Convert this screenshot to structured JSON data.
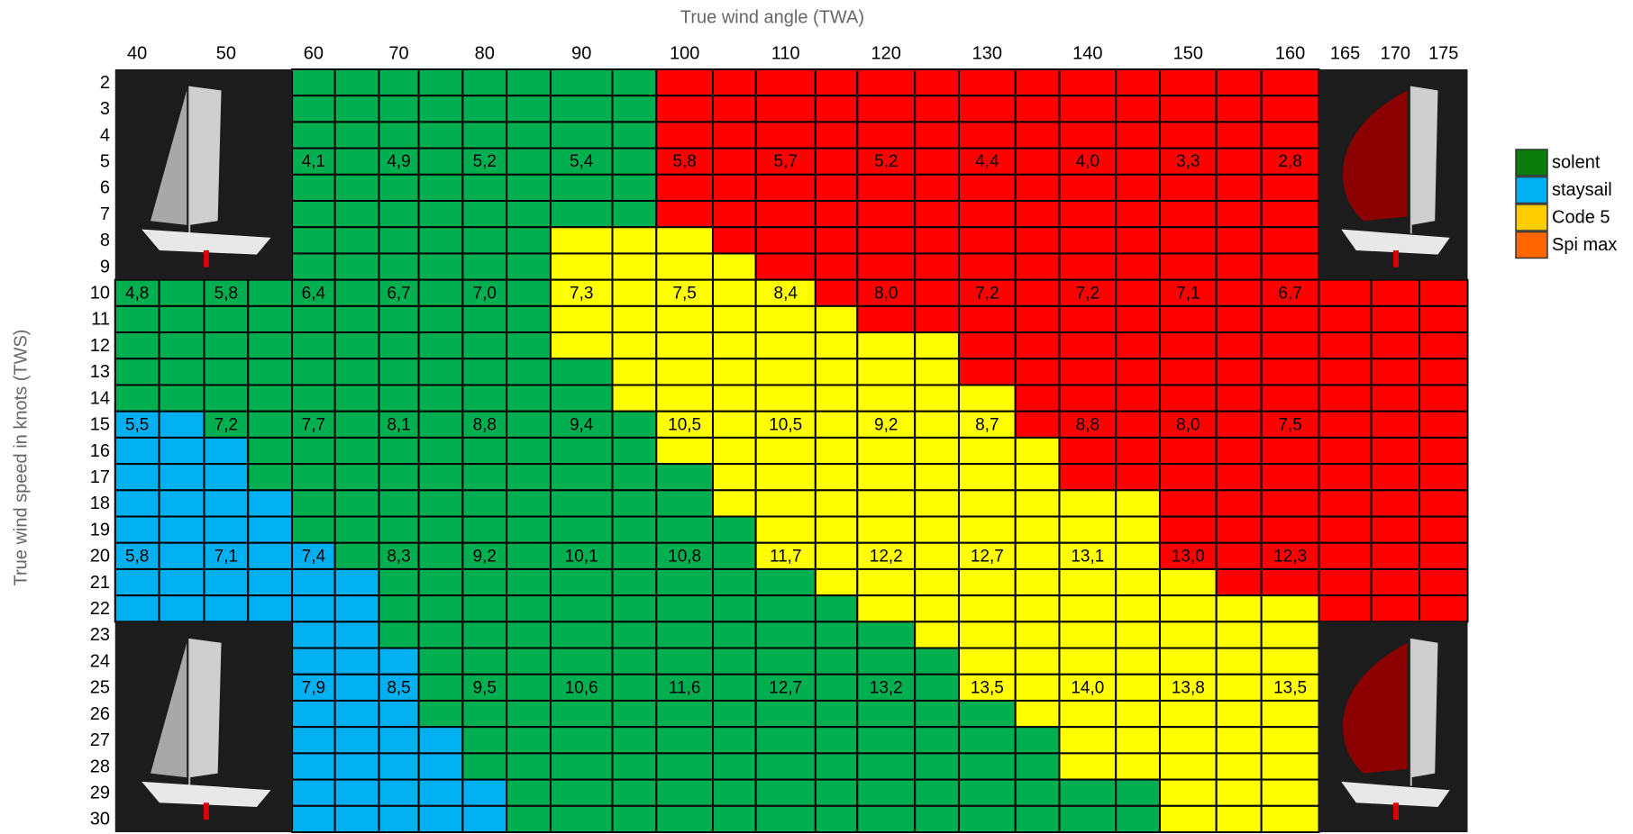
{
  "chart_data": {
    "type": "crossover",
    "x_label": "True wind angle (TWA)",
    "y_label": "True wind speed in knots (TWS)",
    "twa": [
      40,
      45,
      50,
      55,
      60,
      65,
      70,
      75,
      80,
      85,
      90,
      95,
      100,
      105,
      110,
      115,
      120,
      125,
      130,
      135,
      140,
      145,
      150,
      155,
      160,
      165,
      170,
      175
    ],
    "xticks": [
      40,
      50,
      60,
      70,
      80,
      90,
      100,
      110,
      120,
      130,
      140,
      150,
      160,
      165,
      170,
      175
    ],
    "tws": [
      2,
      3,
      4,
      5,
      6,
      7,
      8,
      9,
      10,
      11,
      12,
      13,
      14,
      15,
      16,
      17,
      18,
      19,
      20,
      21,
      22,
      23,
      24,
      25,
      26,
      27,
      28,
      29,
      30
    ],
    "series": [
      {
        "name": "solent",
        "color": "#0a7d0a",
        "fill": "#00b050"
      },
      {
        "name": "staysail",
        "color": "#00b0f0",
        "fill": "#00b0f0"
      },
      {
        "name": "Code 5",
        "color": "#ffcc00",
        "fill": "#ffff00"
      },
      {
        "name": "Spi max",
        "color": "#ff6600",
        "fill": "#ff0000"
      }
    ],
    "grid": [
      [
        null,
        null,
        null,
        null,
        0,
        0,
        0,
        0,
        0,
        0,
        0,
        0,
        3,
        3,
        3,
        3,
        3,
        3,
        3,
        3,
        3,
        3,
        3,
        3,
        3,
        null,
        null,
        null
      ],
      [
        null,
        null,
        null,
        null,
        0,
        0,
        0,
        0,
        0,
        0,
        0,
        0,
        3,
        3,
        3,
        3,
        3,
        3,
        3,
        3,
        3,
        3,
        3,
        3,
        3,
        null,
        null,
        null
      ],
      [
        null,
        null,
        null,
        null,
        0,
        0,
        0,
        0,
        0,
        0,
        0,
        0,
        3,
        3,
        3,
        3,
        3,
        3,
        3,
        3,
        3,
        3,
        3,
        3,
        3,
        null,
        null,
        null
      ],
      [
        null,
        null,
        null,
        null,
        0,
        0,
        0,
        0,
        0,
        0,
        0,
        0,
        3,
        3,
        3,
        3,
        3,
        3,
        3,
        3,
        3,
        3,
        3,
        3,
        3,
        null,
        null,
        null
      ],
      [
        null,
        null,
        null,
        null,
        0,
        0,
        0,
        0,
        0,
        0,
        0,
        0,
        3,
        3,
        3,
        3,
        3,
        3,
        3,
        3,
        3,
        3,
        3,
        3,
        3,
        null,
        null,
        null
      ],
      [
        null,
        null,
        null,
        null,
        0,
        0,
        0,
        0,
        0,
        0,
        0,
        0,
        3,
        3,
        3,
        3,
        3,
        3,
        3,
        3,
        3,
        3,
        3,
        3,
        3,
        null,
        null,
        null
      ],
      [
        null,
        null,
        null,
        null,
        0,
        0,
        0,
        0,
        0,
        0,
        2,
        2,
        2,
        3,
        3,
        3,
        3,
        3,
        3,
        3,
        3,
        3,
        3,
        3,
        3,
        null,
        null,
        null
      ],
      [
        null,
        null,
        null,
        null,
        0,
        0,
        0,
        0,
        0,
        0,
        2,
        2,
        2,
        2,
        3,
        3,
        3,
        3,
        3,
        3,
        3,
        3,
        3,
        3,
        3,
        null,
        null,
        null
      ],
      [
        0,
        0,
        0,
        0,
        0,
        0,
        0,
        0,
        0,
        0,
        2,
        2,
        2,
        2,
        2,
        3,
        3,
        3,
        3,
        3,
        3,
        3,
        3,
        3,
        3,
        3,
        3,
        3
      ],
      [
        0,
        0,
        0,
        0,
        0,
        0,
        0,
        0,
        0,
        0,
        2,
        2,
        2,
        2,
        2,
        2,
        3,
        3,
        3,
        3,
        3,
        3,
        3,
        3,
        3,
        3,
        3,
        3
      ],
      [
        0,
        0,
        0,
        0,
        0,
        0,
        0,
        0,
        0,
        0,
        2,
        2,
        2,
        2,
        2,
        2,
        2,
        2,
        3,
        3,
        3,
        3,
        3,
        3,
        3,
        3,
        3,
        3
      ],
      [
        0,
        0,
        0,
        0,
        0,
        0,
        0,
        0,
        0,
        0,
        0,
        2,
        2,
        2,
        2,
        2,
        2,
        2,
        3,
        3,
        3,
        3,
        3,
        3,
        3,
        3,
        3,
        3
      ],
      [
        0,
        0,
        0,
        0,
        0,
        0,
        0,
        0,
        0,
        0,
        0,
        2,
        2,
        2,
        2,
        2,
        2,
        2,
        2,
        3,
        3,
        3,
        3,
        3,
        3,
        3,
        3,
        3
      ],
      [
        1,
        1,
        0,
        0,
        0,
        0,
        0,
        0,
        0,
        0,
        0,
        0,
        2,
        2,
        2,
        2,
        2,
        2,
        2,
        3,
        3,
        3,
        3,
        3,
        3,
        3,
        3,
        3
      ],
      [
        1,
        1,
        1,
        0,
        0,
        0,
        0,
        0,
        0,
        0,
        0,
        0,
        2,
        2,
        2,
        2,
        2,
        2,
        2,
        2,
        3,
        3,
        3,
        3,
        3,
        3,
        3,
        3
      ],
      [
        1,
        1,
        1,
        0,
        0,
        0,
        0,
        0,
        0,
        0,
        0,
        0,
        0,
        2,
        2,
        2,
        2,
        2,
        2,
        2,
        3,
        3,
        3,
        3,
        3,
        3,
        3,
        3
      ],
      [
        1,
        1,
        1,
        1,
        0,
        0,
        0,
        0,
        0,
        0,
        0,
        0,
        0,
        2,
        2,
        2,
        2,
        2,
        2,
        2,
        2,
        2,
        3,
        3,
        3,
        3,
        3,
        3
      ],
      [
        1,
        1,
        1,
        1,
        0,
        0,
        0,
        0,
        0,
        0,
        0,
        0,
        0,
        0,
        2,
        2,
        2,
        2,
        2,
        2,
        2,
        2,
        3,
        3,
        3,
        3,
        3,
        3
      ],
      [
        1,
        1,
        1,
        1,
        1,
        0,
        0,
        0,
        0,
        0,
        0,
        0,
        0,
        0,
        2,
        2,
        2,
        2,
        2,
        2,
        2,
        2,
        3,
        3,
        3,
        3,
        3,
        3
      ],
      [
        1,
        1,
        1,
        1,
        1,
        1,
        0,
        0,
        0,
        0,
        0,
        0,
        0,
        0,
        0,
        2,
        2,
        2,
        2,
        2,
        2,
        2,
        2,
        3,
        3,
        3,
        3,
        3
      ],
      [
        1,
        1,
        1,
        1,
        1,
        1,
        0,
        0,
        0,
        0,
        0,
        0,
        0,
        0,
        0,
        0,
        2,
        2,
        2,
        2,
        2,
        2,
        2,
        2,
        2,
        3,
        3,
        3
      ],
      [
        null,
        null,
        null,
        null,
        1,
        1,
        0,
        0,
        0,
        0,
        0,
        0,
        0,
        0,
        0,
        0,
        0,
        2,
        2,
        2,
        2,
        2,
        2,
        2,
        2,
        null,
        null,
        null
      ],
      [
        null,
        null,
        null,
        null,
        1,
        1,
        1,
        0,
        0,
        0,
        0,
        0,
        0,
        0,
        0,
        0,
        0,
        0,
        2,
        2,
        2,
        2,
        2,
        2,
        2,
        null,
        null,
        null
      ],
      [
        null,
        null,
        null,
        null,
        1,
        1,
        1,
        0,
        0,
        0,
        0,
        0,
        0,
        0,
        0,
        0,
        0,
        0,
        2,
        2,
        2,
        2,
        2,
        2,
        2,
        null,
        null,
        null
      ],
      [
        null,
        null,
        null,
        null,
        1,
        1,
        1,
        0,
        0,
        0,
        0,
        0,
        0,
        0,
        0,
        0,
        0,
        0,
        0,
        2,
        2,
        2,
        2,
        2,
        2,
        null,
        null,
        null
      ],
      [
        null,
        null,
        null,
        null,
        1,
        1,
        1,
        1,
        0,
        0,
        0,
        0,
        0,
        0,
        0,
        0,
        0,
        0,
        0,
        0,
        2,
        2,
        2,
        2,
        2,
        null,
        null,
        null
      ],
      [
        null,
        null,
        null,
        null,
        1,
        1,
        1,
        1,
        0,
        0,
        0,
        0,
        0,
        0,
        0,
        0,
        0,
        0,
        0,
        0,
        2,
        2,
        2,
        2,
        2,
        null,
        null,
        null
      ],
      [
        null,
        null,
        null,
        null,
        1,
        1,
        1,
        1,
        1,
        0,
        0,
        0,
        0,
        0,
        0,
        0,
        0,
        0,
        0,
        0,
        0,
        0,
        2,
        2,
        2,
        null,
        null,
        null
      ],
      [
        null,
        null,
        null,
        null,
        1,
        1,
        1,
        1,
        1,
        0,
        0,
        0,
        0,
        0,
        0,
        0,
        0,
        0,
        0,
        0,
        0,
        0,
        2,
        2,
        2,
        null,
        null,
        null
      ]
    ],
    "speed_twa": [
      40,
      50,
      60,
      70,
      80,
      90,
      100,
      110,
      120,
      130,
      140,
      150,
      160
    ],
    "speeds": [
      {
        "tws": 5,
        "values": [
          null,
          null,
          4.1,
          4.9,
          5.2,
          5.4,
          5.8,
          5.7,
          5.2,
          4.4,
          4.0,
          3.3,
          2.8
        ],
        "value_labels": [
          null,
          null,
          "4,1",
          "4,9",
          "5,2",
          "5,4",
          "5,8",
          "5,7",
          "5,2",
          "4,4",
          "4,0",
          "3,3",
          "2,8"
        ]
      },
      {
        "tws": 10,
        "values": [
          4.8,
          5.8,
          6.4,
          6.7,
          7.0,
          7.3,
          7.5,
          8.4,
          8.0,
          7.2,
          7.2,
          7.1,
          6.7
        ],
        "value_labels": [
          "4,8",
          "5,8",
          "6,4",
          "6,7",
          "7,0",
          "7,3",
          "7,5",
          "8,4",
          "8,0",
          "7,2",
          "7,2",
          "7,1",
          "6,7"
        ]
      },
      {
        "tws": 15,
        "values": [
          5.5,
          7.2,
          7.7,
          8.1,
          8.8,
          9.4,
          10.5,
          10.5,
          9.2,
          8.7,
          8.8,
          8.0,
          7.5
        ],
        "value_labels": [
          "5,5",
          "7,2",
          "7,7",
          "8,1",
          "8,8",
          "9,4",
          "10,5",
          "10,5",
          "9,2",
          "8,7",
          "8,8",
          "8,0",
          "7,5"
        ]
      },
      {
        "tws": 20,
        "values": [
          5.8,
          7.1,
          7.4,
          8.3,
          9.2,
          10.1,
          10.8,
          11.7,
          12.2,
          12.7,
          13.1,
          13.0,
          12.3
        ],
        "value_labels": [
          "5,8",
          "7,1",
          "7,4",
          "8,3",
          "9,2",
          "10,1",
          "10,8",
          "11,7",
          "12,2",
          "12,7",
          "13,1",
          "13,0",
          "12,3"
        ]
      },
      {
        "tws": 25,
        "values": [
          null,
          null,
          7.9,
          8.5,
          9.5,
          10.6,
          11.6,
          12.7,
          13.2,
          13.5,
          14.0,
          13.8,
          13.5
        ],
        "value_labels": [
          null,
          null,
          "7,9",
          "8,5",
          "9,5",
          "10,6",
          "11,6",
          "12,7",
          "13,2",
          "13,5",
          "14,0",
          "13,8",
          "13,5"
        ]
      }
    ]
  }
}
